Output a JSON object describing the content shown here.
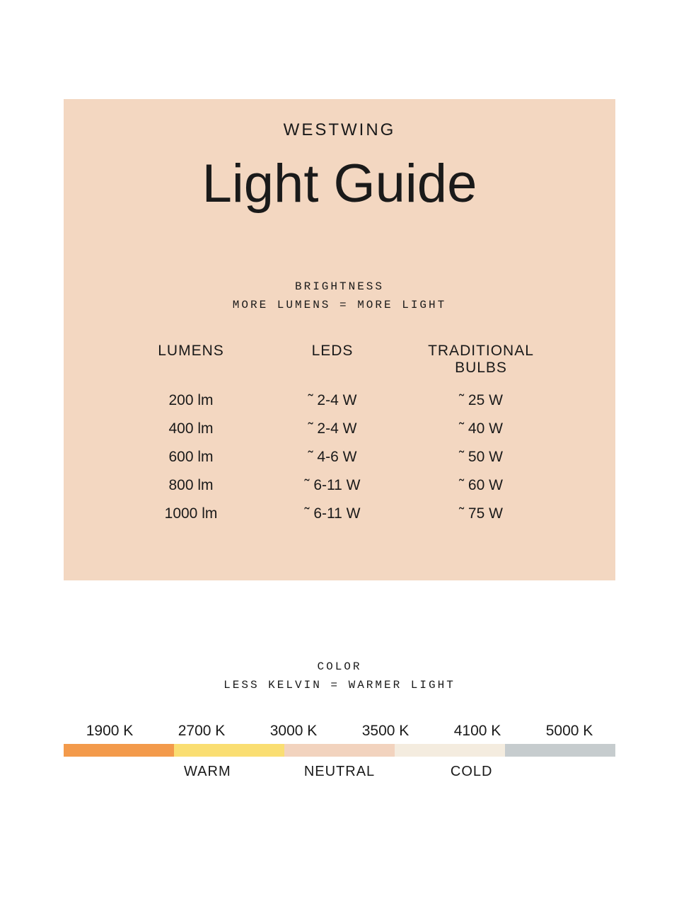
{
  "colors": {
    "card_bg": "#f3d7c1",
    "page_bg": "#ffffff",
    "text": "#1a1a1a"
  },
  "brand": "WESTWING",
  "title": "Light Guide",
  "brightness": {
    "heading": "BRIGHTNESS",
    "subheading": "MORE LUMENS = MORE LIGHT",
    "columns": {
      "lumens": "LUMENS",
      "leds": "LEDS",
      "traditional": "TRADITIONAL BULBS"
    },
    "rows": [
      {
        "lumens": "200 lm",
        "leds": "˜ 2-4 W",
        "traditional": "˜ 25 W"
      },
      {
        "lumens": "400 lm",
        "leds": "˜ 2-4 W",
        "traditional": "˜ 40 W"
      },
      {
        "lumens": "600 lm",
        "leds": "˜ 4-6 W",
        "traditional": "˜ 50 W"
      },
      {
        "lumens": "800 lm",
        "leds": "˜ 6-11 W",
        "traditional": "˜ 60 W"
      },
      {
        "lumens": "1000 lm",
        "leds": "˜ 6-11 W",
        "traditional": "˜ 75 W"
      }
    ]
  },
  "color": {
    "heading": "COLOR",
    "subheading": "LESS KELVIN = WARMER LIGHT",
    "kelvin": [
      "1900 K",
      "2700 K",
      "3000 K",
      "3500 K",
      "4100 K",
      "5000 K"
    ],
    "segments": [
      {
        "color": "#f39a4b"
      },
      {
        "color": "#fade72"
      },
      {
        "color": "#f2d3be"
      },
      {
        "color": "#f4ecdf"
      },
      {
        "color": "#c6ccce"
      }
    ],
    "labels": {
      "warm": "WARM",
      "neutral": "NEUTRAL",
      "cold": "COLD"
    }
  }
}
